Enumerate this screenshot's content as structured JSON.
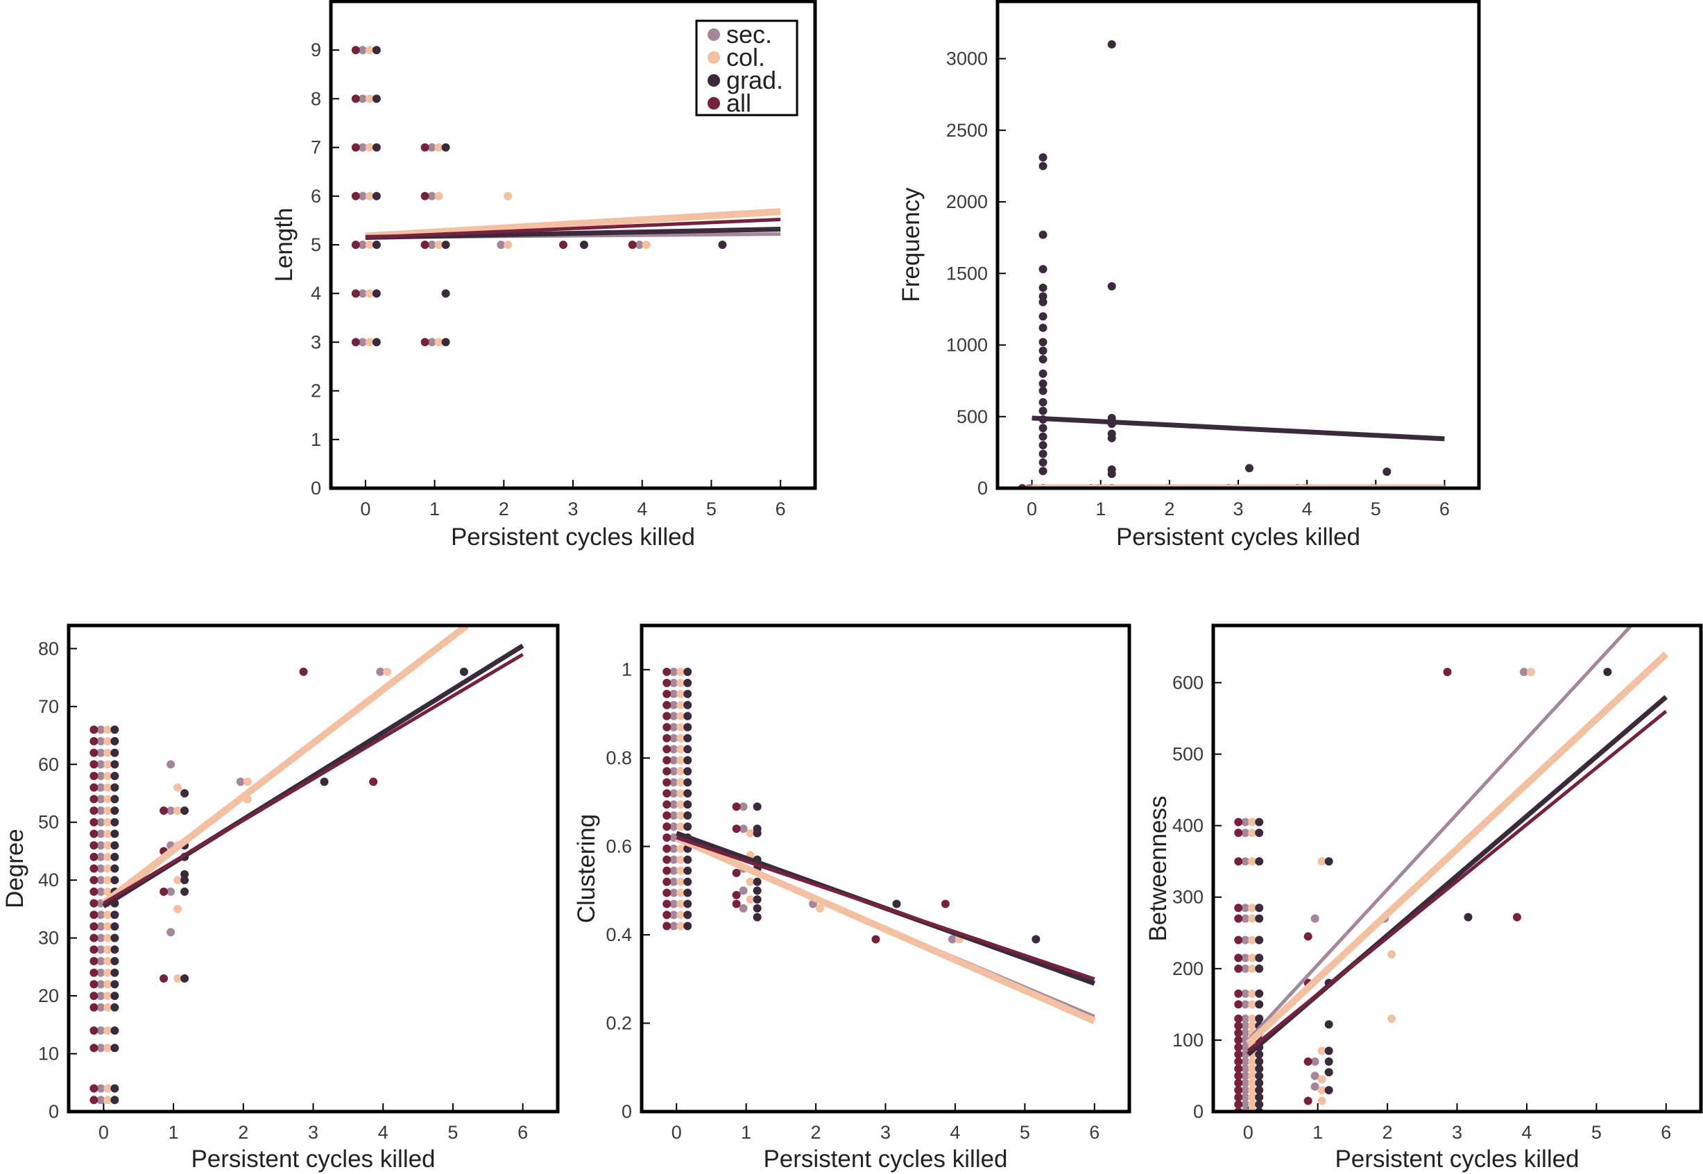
{
  "colors": {
    "sec.": "#a4879b",
    "col.": "#f3c0a2",
    "grad.": "#3a2a3c",
    "all": "#76223e"
  },
  "chart_data": [
    {
      "id": "length",
      "type": "scatter",
      "xlabel": "Persistent cycles killed",
      "ylabel": "Length",
      "xlim": [
        -0.5,
        6.5
      ],
      "ylim": [
        0,
        10
      ],
      "xticks": [
        0,
        1,
        2,
        3,
        4,
        5,
        6
      ],
      "yticks": [
        0,
        1,
        2,
        3,
        4,
        5,
        6,
        7,
        8,
        9
      ],
      "legend": {
        "position": "top-right",
        "entries": [
          "sec.",
          "col.",
          "grad.",
          "all"
        ]
      },
      "series": [
        {
          "name": "sec.",
          "points": [
            [
              0,
              3
            ],
            [
              0,
              4
            ],
            [
              0,
              5
            ],
            [
              0,
              6
            ],
            [
              0,
              7
            ],
            [
              0,
              8
            ],
            [
              0,
              9
            ],
            [
              1,
              3
            ],
            [
              1,
              5
            ],
            [
              1,
              6
            ],
            [
              1,
              7
            ],
            [
              2,
              5
            ],
            [
              4,
              5
            ]
          ],
          "fit": [
            [
              0,
              5.15
            ],
            [
              6,
              5.22
            ]
          ]
        },
        {
          "name": "col.",
          "points": [
            [
              0,
              3
            ],
            [
              0,
              4
            ],
            [
              0,
              5
            ],
            [
              0,
              6
            ],
            [
              0,
              7
            ],
            [
              0,
              8
            ],
            [
              0,
              9
            ],
            [
              1,
              3
            ],
            [
              1,
              5
            ],
            [
              1,
              6
            ],
            [
              1,
              7
            ],
            [
              2,
              5
            ],
            [
              2,
              6
            ],
            [
              4,
              5
            ]
          ],
          "fit": [
            [
              0,
              5.18
            ],
            [
              6,
              5.68
            ]
          ]
        },
        {
          "name": "grad.",
          "points": [
            [
              0,
              3
            ],
            [
              0,
              4
            ],
            [
              0,
              5
            ],
            [
              0,
              6
            ],
            [
              0,
              7
            ],
            [
              0,
              8
            ],
            [
              0,
              9
            ],
            [
              1,
              3
            ],
            [
              1,
              4
            ],
            [
              1,
              5
            ],
            [
              1,
              7
            ],
            [
              3,
              5
            ],
            [
              5,
              5
            ]
          ],
          "fit": [
            [
              0,
              5.15
            ],
            [
              6,
              5.32
            ]
          ]
        },
        {
          "name": "all",
          "points": [
            [
              0,
              3
            ],
            [
              0,
              4
            ],
            [
              0,
              5
            ],
            [
              0,
              6
            ],
            [
              0,
              7
            ],
            [
              0,
              8
            ],
            [
              0,
              9
            ],
            [
              1,
              3
            ],
            [
              1,
              5
            ],
            [
              1,
              6
            ],
            [
              1,
              7
            ],
            [
              3,
              5
            ],
            [
              4,
              5
            ]
          ],
          "fit": [
            [
              0,
              5.15
            ],
            [
              6,
              5.52
            ]
          ]
        }
      ]
    },
    {
      "id": "frequency",
      "type": "scatter",
      "xlabel": "Persistent cycles killed",
      "ylabel": "Frequency",
      "xlim": [
        -0.5,
        6.5
      ],
      "ylim": [
        0,
        3400
      ],
      "xticks": [
        0,
        1,
        2,
        3,
        4,
        5,
        6
      ],
      "yticks": [
        0,
        500,
        1000,
        1500,
        2000,
        2500,
        3000
      ],
      "series": [
        {
          "name": "sec.",
          "points": [
            [
              0,
              0
            ],
            [
              1,
              0
            ],
            [
              2,
              0
            ],
            [
              3,
              0
            ],
            [
              4,
              0
            ],
            [
              5,
              0
            ]
          ],
          "fit": [
            [
              0,
              0
            ],
            [
              6,
              0
            ]
          ]
        },
        {
          "name": "col.",
          "points": [
            [
              0,
              0
            ],
            [
              1,
              0
            ],
            [
              2,
              0
            ],
            [
              4,
              0
            ]
          ],
          "fit": [
            [
              0,
              2
            ],
            [
              6,
              2
            ]
          ]
        },
        {
          "name": "grad.",
          "points": [
            [
              0,
              120
            ],
            [
              0,
              180
            ],
            [
              0,
              240
            ],
            [
              0,
              300
            ],
            [
              0,
              360
            ],
            [
              0,
              420
            ],
            [
              0,
              480
            ],
            [
              0,
              540
            ],
            [
              0,
              600
            ],
            [
              0,
              680
            ],
            [
              0,
              730
            ],
            [
              0,
              800
            ],
            [
              0,
              900
            ],
            [
              0,
              960
            ],
            [
              0,
              1020
            ],
            [
              0,
              1120
            ],
            [
              0,
              1200
            ],
            [
              0,
              1300
            ],
            [
              0,
              1340
            ],
            [
              0,
              1400
            ],
            [
              0,
              1530
            ],
            [
              0,
              1770
            ],
            [
              0,
              2250
            ],
            [
              0,
              2310
            ],
            [
              1,
              100
            ],
            [
              1,
              130
            ],
            [
              1,
              350
            ],
            [
              1,
              380
            ],
            [
              1,
              450
            ],
            [
              1,
              490
            ],
            [
              1,
              1410
            ],
            [
              1,
              3100
            ],
            [
              3,
              140
            ],
            [
              5,
              115
            ],
            [
              0,
              0
            ],
            [
              1,
              0
            ]
          ],
          "fit": [
            [
              0,
              490
            ],
            [
              6,
              345
            ]
          ]
        },
        {
          "name": "all",
          "points": [
            [
              0,
              0
            ],
            [
              1,
              0
            ],
            [
              3,
              0
            ],
            [
              4,
              0
            ]
          ],
          "fit": [
            [
              0,
              0
            ],
            [
              6,
              0
            ]
          ]
        }
      ]
    },
    {
      "id": "degree",
      "type": "scatter",
      "xlabel": "Persistent cycles killed",
      "ylabel": "Degree",
      "xlim": [
        -0.5,
        6.5
      ],
      "ylim": [
        0,
        84
      ],
      "xticks": [
        0,
        1,
        2,
        3,
        4,
        5,
        6
      ],
      "yticks": [
        0,
        10,
        20,
        30,
        40,
        50,
        60,
        70,
        80
      ],
      "series": [
        {
          "name": "sec.",
          "points": [
            [
              1,
              31
            ],
            [
              1,
              38
            ],
            [
              1,
              46
            ],
            [
              1,
              52
            ],
            [
              1,
              60
            ],
            [
              2,
              57
            ],
            [
              4,
              76
            ]
          ],
          "fit": [
            [
              0,
              35.5
            ],
            [
              5.2,
              84
            ]
          ]
        },
        {
          "name": "col.",
          "points": [
            [
              1,
              23
            ],
            [
              1,
              35
            ],
            [
              1,
              40
            ],
            [
              1,
              46
            ],
            [
              1,
              52
            ],
            [
              1,
              56
            ],
            [
              2,
              54
            ],
            [
              2,
              57
            ],
            [
              4,
              76
            ]
          ],
          "fit": [
            [
              0,
              36
            ],
            [
              5.2,
              84
            ]
          ]
        },
        {
          "name": "grad.",
          "points": [
            [
              1,
              23
            ],
            [
              1,
              38
            ],
            [
              1,
              40
            ],
            [
              1,
              41
            ],
            [
              1,
              44
            ],
            [
              1,
              46
            ],
            [
              1,
              52
            ],
            [
              1,
              55
            ],
            [
              3,
              57
            ],
            [
              5,
              76
            ]
          ],
          "fit": [
            [
              0,
              35.5
            ],
            [
              6,
              80.5
            ]
          ]
        },
        {
          "name": "all",
          "points": [
            [
              1,
              23
            ],
            [
              1,
              38
            ],
            [
              1,
              45
            ],
            [
              1,
              52
            ],
            [
              3,
              76
            ],
            [
              4,
              57
            ]
          ],
          "fit": [
            [
              0,
              36
            ],
            [
              6,
              79
            ]
          ]
        }
      ]
    },
    {
      "id": "clustering",
      "type": "scatter",
      "xlabel": "Persistent cycles killed",
      "ylabel": "Clustering",
      "xlim": [
        -0.5,
        6.5
      ],
      "ylim": [
        0,
        1.1
      ],
      "xticks": [
        0,
        1,
        2,
        3,
        4,
        5,
        6
      ],
      "yticks": [
        0,
        0.2,
        0.4,
        0.6,
        0.8,
        1
      ],
      "series": [
        {
          "name": "sec.",
          "points": [
            [
              1,
              0.46
            ],
            [
              1,
              0.5
            ],
            [
              1,
              0.55
            ],
            [
              1,
              0.64
            ],
            [
              1,
              0.69
            ],
            [
              2,
              0.47
            ],
            [
              4,
              0.39
            ]
          ],
          "fit": [
            [
              0,
              0.615
            ],
            [
              6,
              0.215
            ]
          ]
        },
        {
          "name": "col.",
          "points": [
            [
              1,
              0.48
            ],
            [
              1,
              0.52
            ],
            [
              1,
              0.58
            ],
            [
              1,
              0.63
            ],
            [
              2,
              0.46
            ],
            [
              4,
              0.39
            ]
          ],
          "fit": [
            [
              0,
              0.62
            ],
            [
              6,
              0.205
            ]
          ]
        },
        {
          "name": "grad.",
          "points": [
            [
              1,
              0.44
            ],
            [
              1,
              0.46
            ],
            [
              1,
              0.48
            ],
            [
              1,
              0.5
            ],
            [
              1,
              0.52
            ],
            [
              1,
              0.55
            ],
            [
              1,
              0.57
            ],
            [
              1,
              0.63
            ],
            [
              1,
              0.64
            ],
            [
              1,
              0.69
            ],
            [
              3,
              0.47
            ],
            [
              5,
              0.39
            ]
          ],
          "fit": [
            [
              0,
              0.63
            ],
            [
              6,
              0.29
            ]
          ]
        },
        {
          "name": "all",
          "points": [
            [
              1,
              0.47
            ],
            [
              1,
              0.49
            ],
            [
              1,
              0.54
            ],
            [
              1,
              0.64
            ],
            [
              1,
              0.69
            ],
            [
              3,
              0.39
            ],
            [
              4,
              0.47
            ]
          ],
          "fit": [
            [
              0,
              0.62
            ],
            [
              6,
              0.3
            ]
          ]
        }
      ]
    },
    {
      "id": "betweenness",
      "type": "scatter",
      "xlabel": "Persistent cycles killed",
      "ylabel": "Betweenness",
      "xlim": [
        -0.5,
        6.5
      ],
      "ylim": [
        0,
        680
      ],
      "xticks": [
        0,
        1,
        2,
        3,
        4,
        5,
        6
      ],
      "yticks": [
        0,
        100,
        200,
        300,
        400,
        500,
        600
      ],
      "series": [
        {
          "name": "sec.",
          "points": [
            [
              1,
              35
            ],
            [
              1,
              50
            ],
            [
              1,
              70
            ],
            [
              1,
              270
            ],
            [
              2,
              270
            ],
            [
              4,
              615
            ]
          ],
          "fit": [
            [
              0,
              100
            ],
            [
              5.5,
              680
            ]
          ]
        },
        {
          "name": "col.",
          "points": [
            [
              1,
              15
            ],
            [
              1,
              30
            ],
            [
              1,
              45
            ],
            [
              1,
              85
            ],
            [
              1,
              350
            ],
            [
              2,
              130
            ],
            [
              2,
              220
            ],
            [
              4,
              615
            ]
          ],
          "fit": [
            [
              0,
              95
            ],
            [
              6,
              640
            ]
          ]
        },
        {
          "name": "grad.",
          "points": [
            [
              1,
              30
            ],
            [
              1,
              55
            ],
            [
              1,
              70
            ],
            [
              1,
              85
            ],
            [
              1,
              122
            ],
            [
              1,
              180
            ],
            [
              1,
              350
            ],
            [
              3,
              272
            ],
            [
              5,
              615
            ]
          ],
          "fit": [
            [
              0,
              80
            ],
            [
              6,
              580
            ]
          ]
        },
        {
          "name": "all",
          "points": [
            [
              1,
              15
            ],
            [
              1,
              70
            ],
            [
              1,
              180
            ],
            [
              1,
              245
            ],
            [
              3,
              615
            ],
            [
              4,
              272
            ]
          ],
          "fit": [
            [
              0,
              85
            ],
            [
              6,
              560
            ]
          ]
        }
      ]
    }
  ]
}
